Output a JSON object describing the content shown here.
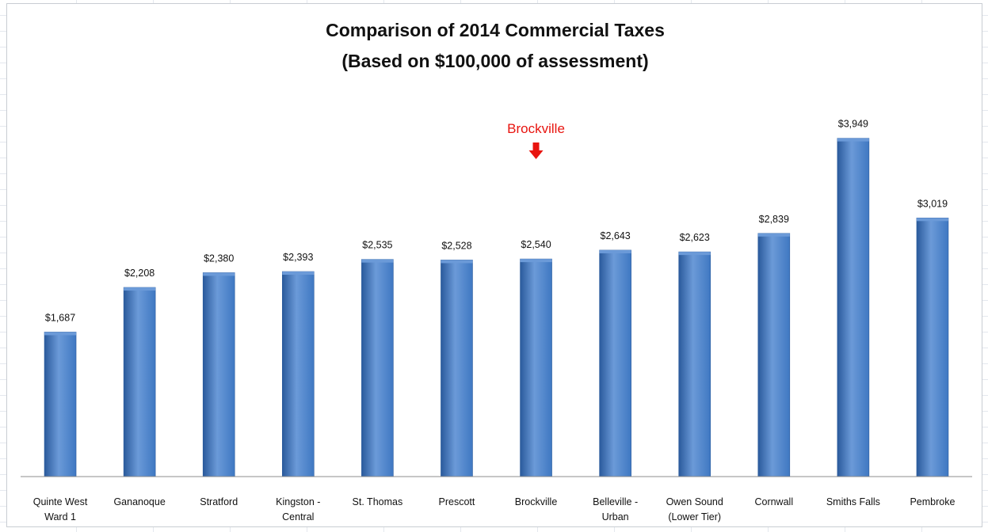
{
  "chart_data": {
    "type": "bar",
    "title": "Comparison  of 2014 Commercial Taxes",
    "subtitle": "(Based on $100,000 of assessment)",
    "categories": [
      [
        "Quinte West",
        "Ward 1"
      ],
      [
        "Gananoque"
      ],
      [
        "Stratford"
      ],
      [
        "Kingston -",
        "Central"
      ],
      [
        "St. Thomas"
      ],
      [
        "Prescott"
      ],
      [
        "Brockville"
      ],
      [
        "Belleville -",
        "Urban"
      ],
      [
        "Owen Sound",
        "(Lower Tier)"
      ],
      [
        "Cornwall"
      ],
      [
        "Smiths Falls"
      ],
      [
        "Pembroke"
      ]
    ],
    "values": [
      1687,
      2208,
      2380,
      2393,
      2535,
      2528,
      2540,
      2643,
      2623,
      2839,
      3949,
      3019
    ],
    "data_labels": [
      "$1,687",
      "$2,208",
      "$2,380",
      "$2,393",
      "$2,535",
      "$2,528",
      "$2,540",
      "$2,643",
      "$2,623",
      "$2,839",
      "$3,949",
      "$3,019"
    ],
    "xlabel": "",
    "ylabel": "",
    "ylim": [
      0,
      4500
    ],
    "grid": false,
    "legend": "none",
    "bar_color": "#3f78c2",
    "bar_color_dark": "#2a5a9c",
    "bar_color_light": "#6b9ad8",
    "annotation": {
      "text": "Brockville",
      "category_index": 6,
      "color": "#e8140f",
      "marker": "down-arrow"
    }
  }
}
